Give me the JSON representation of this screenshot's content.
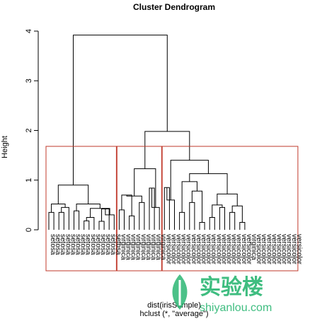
{
  "chart_data": {
    "type": "dendrogram",
    "title": "Cluster Dendrogram",
    "ylabel": "Height",
    "xlabel_line1": "dist(irisSample)",
    "xlabel_line2": "hclust (*, \"average\")",
    "ylim": [
      0,
      4
    ],
    "y_ticks": [
      "0",
      "1",
      "2",
      "3",
      "4"
    ],
    "leaves": [
      "setosa",
      "setosa",
      "setosa",
      "setosa",
      "setosa",
      "setosa",
      "setosa",
      "setosa",
      "setosa",
      "setosa",
      "setosa",
      "setosa",
      "setosa",
      "setosa",
      "virginica",
      "virginica",
      "virginica",
      "virginica",
      "virginica",
      "virginica",
      "virginica",
      "virginica",
      "virginica",
      "versicolor",
      "versicolor",
      "versicolor",
      "versicolor",
      "versicolor",
      "versicolor",
      "versicolor",
      "versicolor",
      "versicolor",
      "versicolor",
      "versicolor",
      "versicolor",
      "versicolor",
      "versicolor",
      "versicolor",
      "versicolor",
      "versicolor",
      "virginica",
      "versicolor",
      "versicolor",
      "versicolor",
      "versicolor",
      "versicolor",
      "versicolor",
      "versicolor",
      "versicolor",
      "versicolor"
    ],
    "merges": [
      [
        [
          0,
          1
        ],
        0.35
      ],
      [
        [
          2,
          3
        ],
        0.35
      ],
      [
        [
          5,
          6
        ],
        0.25
      ],
      [
        [
          7,
          8
        ],
        0.18
      ],
      [
        [
          10,
          11
        ],
        0.17
      ],
      [
        [
          12,
          13
        ],
        0.3
      ],
      [
        [
          9,
          "m4"
        ],
        0.3
      ],
      [
        "m3",
        4
      ],
      [
        [
          "m3a",
          "m5"
        ],
        0.45
      ],
      [
        [
          "m0",
          "m1"
        ],
        0.48
      ],
      [
        [
          "m6",
          "m8"
        ],
        0.55
      ],
      [
        [
          "m9",
          "m10"
        ],
        0.9
      ]
    ],
    "clusters_highlighted": 3,
    "rect_color": "#c0392b",
    "line_color": "#000000"
  },
  "watermark": {
    "brand_cn": "实验楼",
    "brand_url": "shiyanlou.com",
    "color": "#2bb673"
  }
}
